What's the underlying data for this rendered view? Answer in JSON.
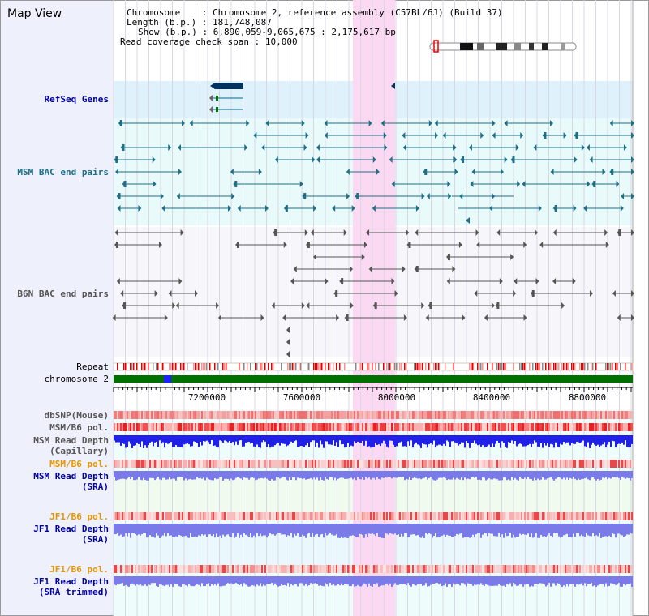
{
  "panel_title": "Map View",
  "info": {
    "chromosome_label": "Chromosome",
    "chromosome_value": "Chromosome 2, reference assembly (C57BL/6J) (Build 37)",
    "length_label": "Length (b.p.)",
    "length_value": "181,748,087",
    "show_label": "Show (b.p.)",
    "show_value": "6,890,059-9,065,675 : 2,175,617 bp",
    "span_label": "Read coverage check span",
    "span_value": "10,000"
  },
  "tracks": {
    "refseq": "RefSeq Genes",
    "msm_bac": "MSM BAC end pairs",
    "b6n_bac": "B6N BAC end pairs",
    "repeat": "Repeat",
    "chromosome": "chromosome 2",
    "dbsnp": "dbSNP(Mouse)",
    "msm_pol1": "MSM/B6 pol.",
    "msm_depth_cap_1": "MSM Read Depth",
    "msm_depth_cap_2": "(Capillary)",
    "msm_pol2": "MSM/B6 pol.",
    "msm_depth_sra_1": "MSM Read Depth",
    "msm_depth_sra_2": "(SRA)",
    "jf1_pol1": "JF1/B6 pol.",
    "jf1_depth_1": "JF1 Read Depth",
    "jf1_depth_2": "(SRA)",
    "jf1_pol2": "JF1/B6 pol.",
    "jf1_trim_1": "JF1 Read Depth",
    "jf1_trim_2": "(SRA trimmed)"
  },
  "axis_ticks": [
    "7200000",
    "7600000",
    "8000000",
    "8400000",
    "8800000"
  ],
  "colors": {
    "refseq_bg": "#dff2fb",
    "bac_bg": "#e9fafb",
    "highlight": "#fbd9f2",
    "chrom_green": "#007000",
    "gene_dark": "#00335e",
    "msm_teal": "#1f6f86",
    "b6n_gray": "#555555",
    "depth_blue": "#2020e8",
    "depth_sra": "#7a7ae8",
    "pol_red": "#e82020"
  }
}
